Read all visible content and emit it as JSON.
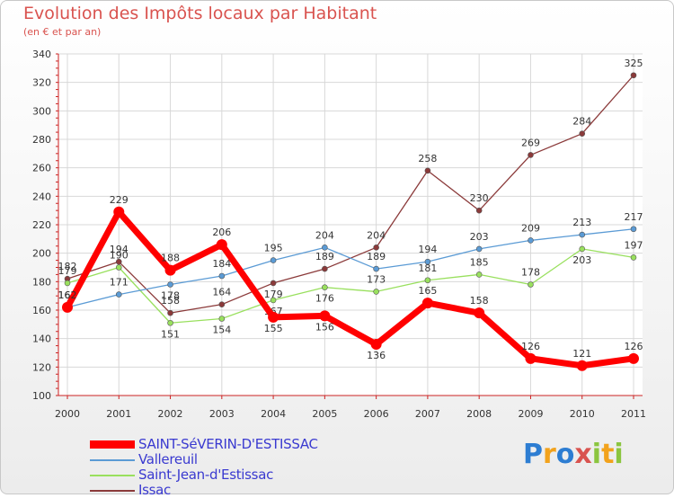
{
  "title": "Evolution des Impôts locaux par Habitant",
  "subtitle": "(en € et par an)",
  "logo": {
    "text": "Proxiti",
    "colors": [
      "#2d7dd2",
      "#f2a21c",
      "#2d7dd2",
      "#d9534f",
      "#8bc53f",
      "#f2a21c",
      "#8bc53f"
    ]
  },
  "chart_data": {
    "type": "line",
    "title": "Evolution des Impôts locaux par Habitant",
    "subtitle": "(en € et par an)",
    "xlabel": "",
    "ylabel": "",
    "categories": [
      "2000",
      "2001",
      "2002",
      "2003",
      "2004",
      "2005",
      "2006",
      "2007",
      "2008",
      "2009",
      "2010",
      "2011"
    ],
    "ylim": [
      100,
      340
    ],
    "yticks": [
      100,
      120,
      140,
      160,
      180,
      200,
      220,
      240,
      260,
      280,
      300,
      320,
      340
    ],
    "grid": true,
    "legend_position": "bottom-left",
    "series": [
      {
        "name": "SAINT-SéVERIN-D'ESTISSAC",
        "color": "#ff0000",
        "values": [
          162,
          229,
          188,
          206,
          155,
          156,
          136,
          165,
          158,
          126,
          121,
          126
        ],
        "labels": [
          "162",
          "229",
          "188",
          "206",
          "155",
          "156",
          "136",
          "165",
          "158",
          "126",
          "121",
          "126"
        ]
      },
      {
        "name": "Vallereuil",
        "color": "#5b9bd5",
        "values": [
          162,
          171,
          178,
          184,
          195,
          204,
          189,
          194,
          203,
          209,
          213,
          217
        ],
        "labels": [
          "162",
          "171",
          "178",
          "184",
          "195",
          "204",
          "189",
          "194",
          "203",
          "209",
          "213",
          "217"
        ]
      },
      {
        "name": "Saint-Jean-d'Estissac",
        "color": "#99e05e",
        "values": [
          179,
          190,
          151,
          154,
          167,
          176,
          173,
          181,
          185,
          178,
          203,
          197
        ],
        "labels": [
          "179",
          "190",
          "151",
          "154",
          "167",
          "176",
          "173",
          "181",
          "185",
          "178",
          "203",
          "197"
        ]
      },
      {
        "name": "Issac",
        "color": "#8b3a3a",
        "values": [
          182,
          194,
          158,
          164,
          179,
          189,
          204,
          258,
          230,
          269,
          284,
          325
        ],
        "labels": [
          "182",
          "194",
          "158",
          "164",
          "179",
          "189",
          "204",
          "258",
          "230",
          "269",
          "284",
          "325"
        ]
      }
    ]
  }
}
